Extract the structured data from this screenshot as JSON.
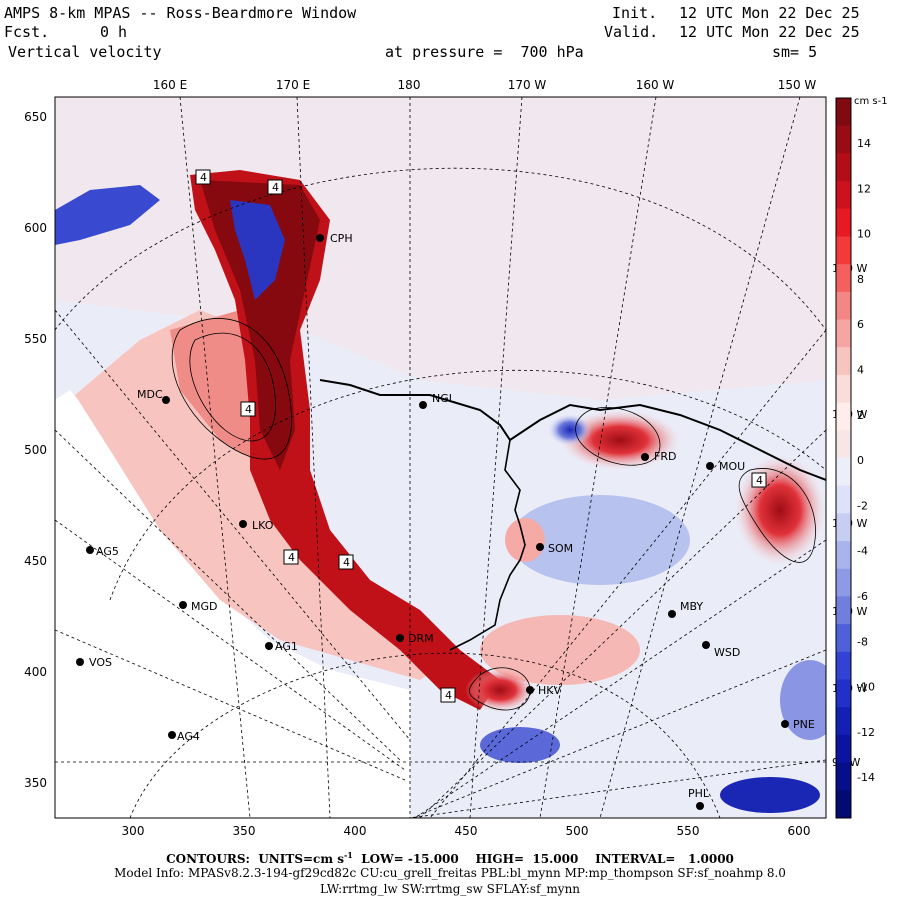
{
  "header": {
    "title": "AMPS 8-km MPAS -- Ross-Beardmore Window",
    "fcst_label": "Fcst.",
    "fcst_value": "0 h",
    "field": "Vertical velocity",
    "init_label": "Init.",
    "init_value": "12 UTC Mon 22 Dec 25",
    "valid_label": "Valid.",
    "valid_value": "12 UTC Mon 22 Dec 25",
    "pressure_text": "at pressure =  700 hPa",
    "smooth_text": "sm= 5"
  },
  "map": {
    "top_lon_labels": [
      "160 E",
      "170 E",
      "180",
      "170 W",
      "160 W",
      "150 W"
    ],
    "right_lon_labels": [
      "140 W",
      "130 W",
      "120 W",
      "110 W",
      "100 W",
      "90 W"
    ],
    "y_ticks": [
      "650",
      "600",
      "550",
      "500",
      "450",
      "400",
      "350"
    ],
    "x_ticks": [
      "300",
      "350",
      "400",
      "450",
      "500",
      "550",
      "600"
    ],
    "stations": [
      {
        "name": "CPH"
      },
      {
        "name": "NGL"
      },
      {
        "name": "MDC"
      },
      {
        "name": "FRD"
      },
      {
        "name": "MOU"
      },
      {
        "name": "AG5"
      },
      {
        "name": "MGD"
      },
      {
        "name": "AG1"
      },
      {
        "name": "VOS"
      },
      {
        "name": "AG4"
      },
      {
        "name": "SOM"
      },
      {
        "name": "MBY"
      },
      {
        "name": "WSD"
      },
      {
        "name": "DRM"
      },
      {
        "name": "HKV"
      },
      {
        "name": "PNE"
      },
      {
        "name": "PHL"
      },
      {
        "name": "LKO"
      }
    ],
    "box_label": "4",
    "colors": {
      "coast": "#000000",
      "grid": "#000000"
    }
  },
  "colorbar": {
    "units": "cm s-1",
    "tick_labels": [
      "14",
      "12",
      "10",
      "8",
      "6",
      "4",
      "2",
      "0",
      "-2",
      "-4",
      "-6",
      "-8",
      "-10",
      "-12",
      "-14"
    ],
    "colors": [
      "#7f0a12",
      "#990c14",
      "#b30e18",
      "#cc121c",
      "#e51a22",
      "#f23a3a",
      "#f4605e",
      "#f58686",
      "#f6a6a2",
      "#f8c4c0",
      "#fadcd8",
      "#fdeeec",
      "#f6e6e6",
      "#eceefa",
      "#dde2f8",
      "#c6cef2",
      "#aab4ec",
      "#8e9ae6",
      "#707ede",
      "#5060d8",
      "#3242d2",
      "#2030c8",
      "#1420b4",
      "#0a14a0",
      "#060e8a",
      "#030a72"
    ]
  },
  "footer": {
    "contours_label": "CONTOURS:",
    "units_label": "UNITS=cm s",
    "units_exp": "-1",
    "low": "LOW= -15.000",
    "high": "HIGH=  15.000",
    "interval": "INTERVAL=   1.0000",
    "model_info": "Model Info: MPASv8.2.3-194-gf29cd82c CU:cu_grell_freitas PBL:bl_mynn MP:mp_thompson SF:sf_noahmp 8.0",
    "model_info2": "LW:rrtmg_lw SW:rrtmg_sw SFLAY:sf_mynn"
  }
}
